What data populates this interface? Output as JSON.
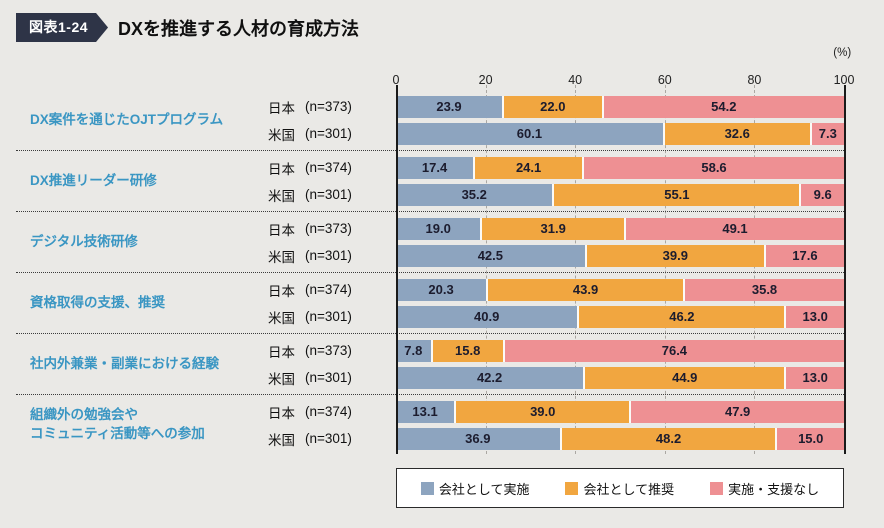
{
  "header": {
    "badge": "図表1-24",
    "title": "DXを推進する人材の育成方法"
  },
  "colors": {
    "background": "#eae9e6",
    "badge": "#2e3447",
    "category_label": "#3a96c3",
    "value_ink": "#1c1c2e"
  },
  "chart_data": {
    "type": "bar",
    "orientation": "horizontal-stacked",
    "title": "DXを推進する人材の育成方法",
    "x_unit": "(%)",
    "xlim": [
      0,
      100
    ],
    "x_ticks": [
      0,
      20,
      40,
      60,
      80,
      100
    ],
    "grid": "dashed-vertical",
    "legend_position": "bottom",
    "series": [
      {
        "name": "会社として実施",
        "color": "#8da4bf"
      },
      {
        "name": "会社として推奨",
        "color": "#f1a640"
      },
      {
        "name": "実施・支援なし",
        "color": "#ee9093"
      }
    ],
    "groups": [
      {
        "category": [
          "DX案件を通じたOJTプログラム"
        ],
        "rows": [
          {
            "country": "日本",
            "n": "(n=373)",
            "values": [
              "23.9",
              "22.0",
              "54.2"
            ]
          },
          {
            "country": "米国",
            "n": "(n=301)",
            "values": [
              "60.1",
              "32.6",
              "7.3"
            ]
          }
        ]
      },
      {
        "category": [
          "DX推進リーダー研修"
        ],
        "rows": [
          {
            "country": "日本",
            "n": "(n=374)",
            "values": [
              "17.4",
              "24.1",
              "58.6"
            ]
          },
          {
            "country": "米国",
            "n": "(n=301)",
            "values": [
              "35.2",
              "55.1",
              "9.6"
            ]
          }
        ]
      },
      {
        "category": [
          "デジタル技術研修"
        ],
        "rows": [
          {
            "country": "日本",
            "n": "(n=373)",
            "values": [
              "19.0",
              "31.9",
              "49.1"
            ]
          },
          {
            "country": "米国",
            "n": "(n=301)",
            "values": [
              "42.5",
              "39.9",
              "17.6"
            ]
          }
        ]
      },
      {
        "category": [
          "資格取得の支援、推奨"
        ],
        "rows": [
          {
            "country": "日本",
            "n": "(n=374)",
            "values": [
              "20.3",
              "43.9",
              "35.8"
            ]
          },
          {
            "country": "米国",
            "n": "(n=301)",
            "values": [
              "40.9",
              "46.2",
              "13.0"
            ]
          }
        ]
      },
      {
        "category": [
          "社内外兼業・副業における経験"
        ],
        "rows": [
          {
            "country": "日本",
            "n": "(n=373)",
            "values": [
              "7.8",
              "15.8",
              "76.4"
            ]
          },
          {
            "country": "米国",
            "n": "(n=301)",
            "values": [
              "42.2",
              "44.9",
              "13.0"
            ]
          }
        ]
      },
      {
        "category": [
          "組織外の勉強会や",
          "コミュニティ活動等への参加"
        ],
        "rows": [
          {
            "country": "日本",
            "n": "(n=374)",
            "values": [
              "13.1",
              "39.0",
              "47.9"
            ]
          },
          {
            "country": "米国",
            "n": "(n=301)",
            "values": [
              "36.9",
              "48.2",
              "15.0"
            ]
          }
        ]
      }
    ]
  }
}
